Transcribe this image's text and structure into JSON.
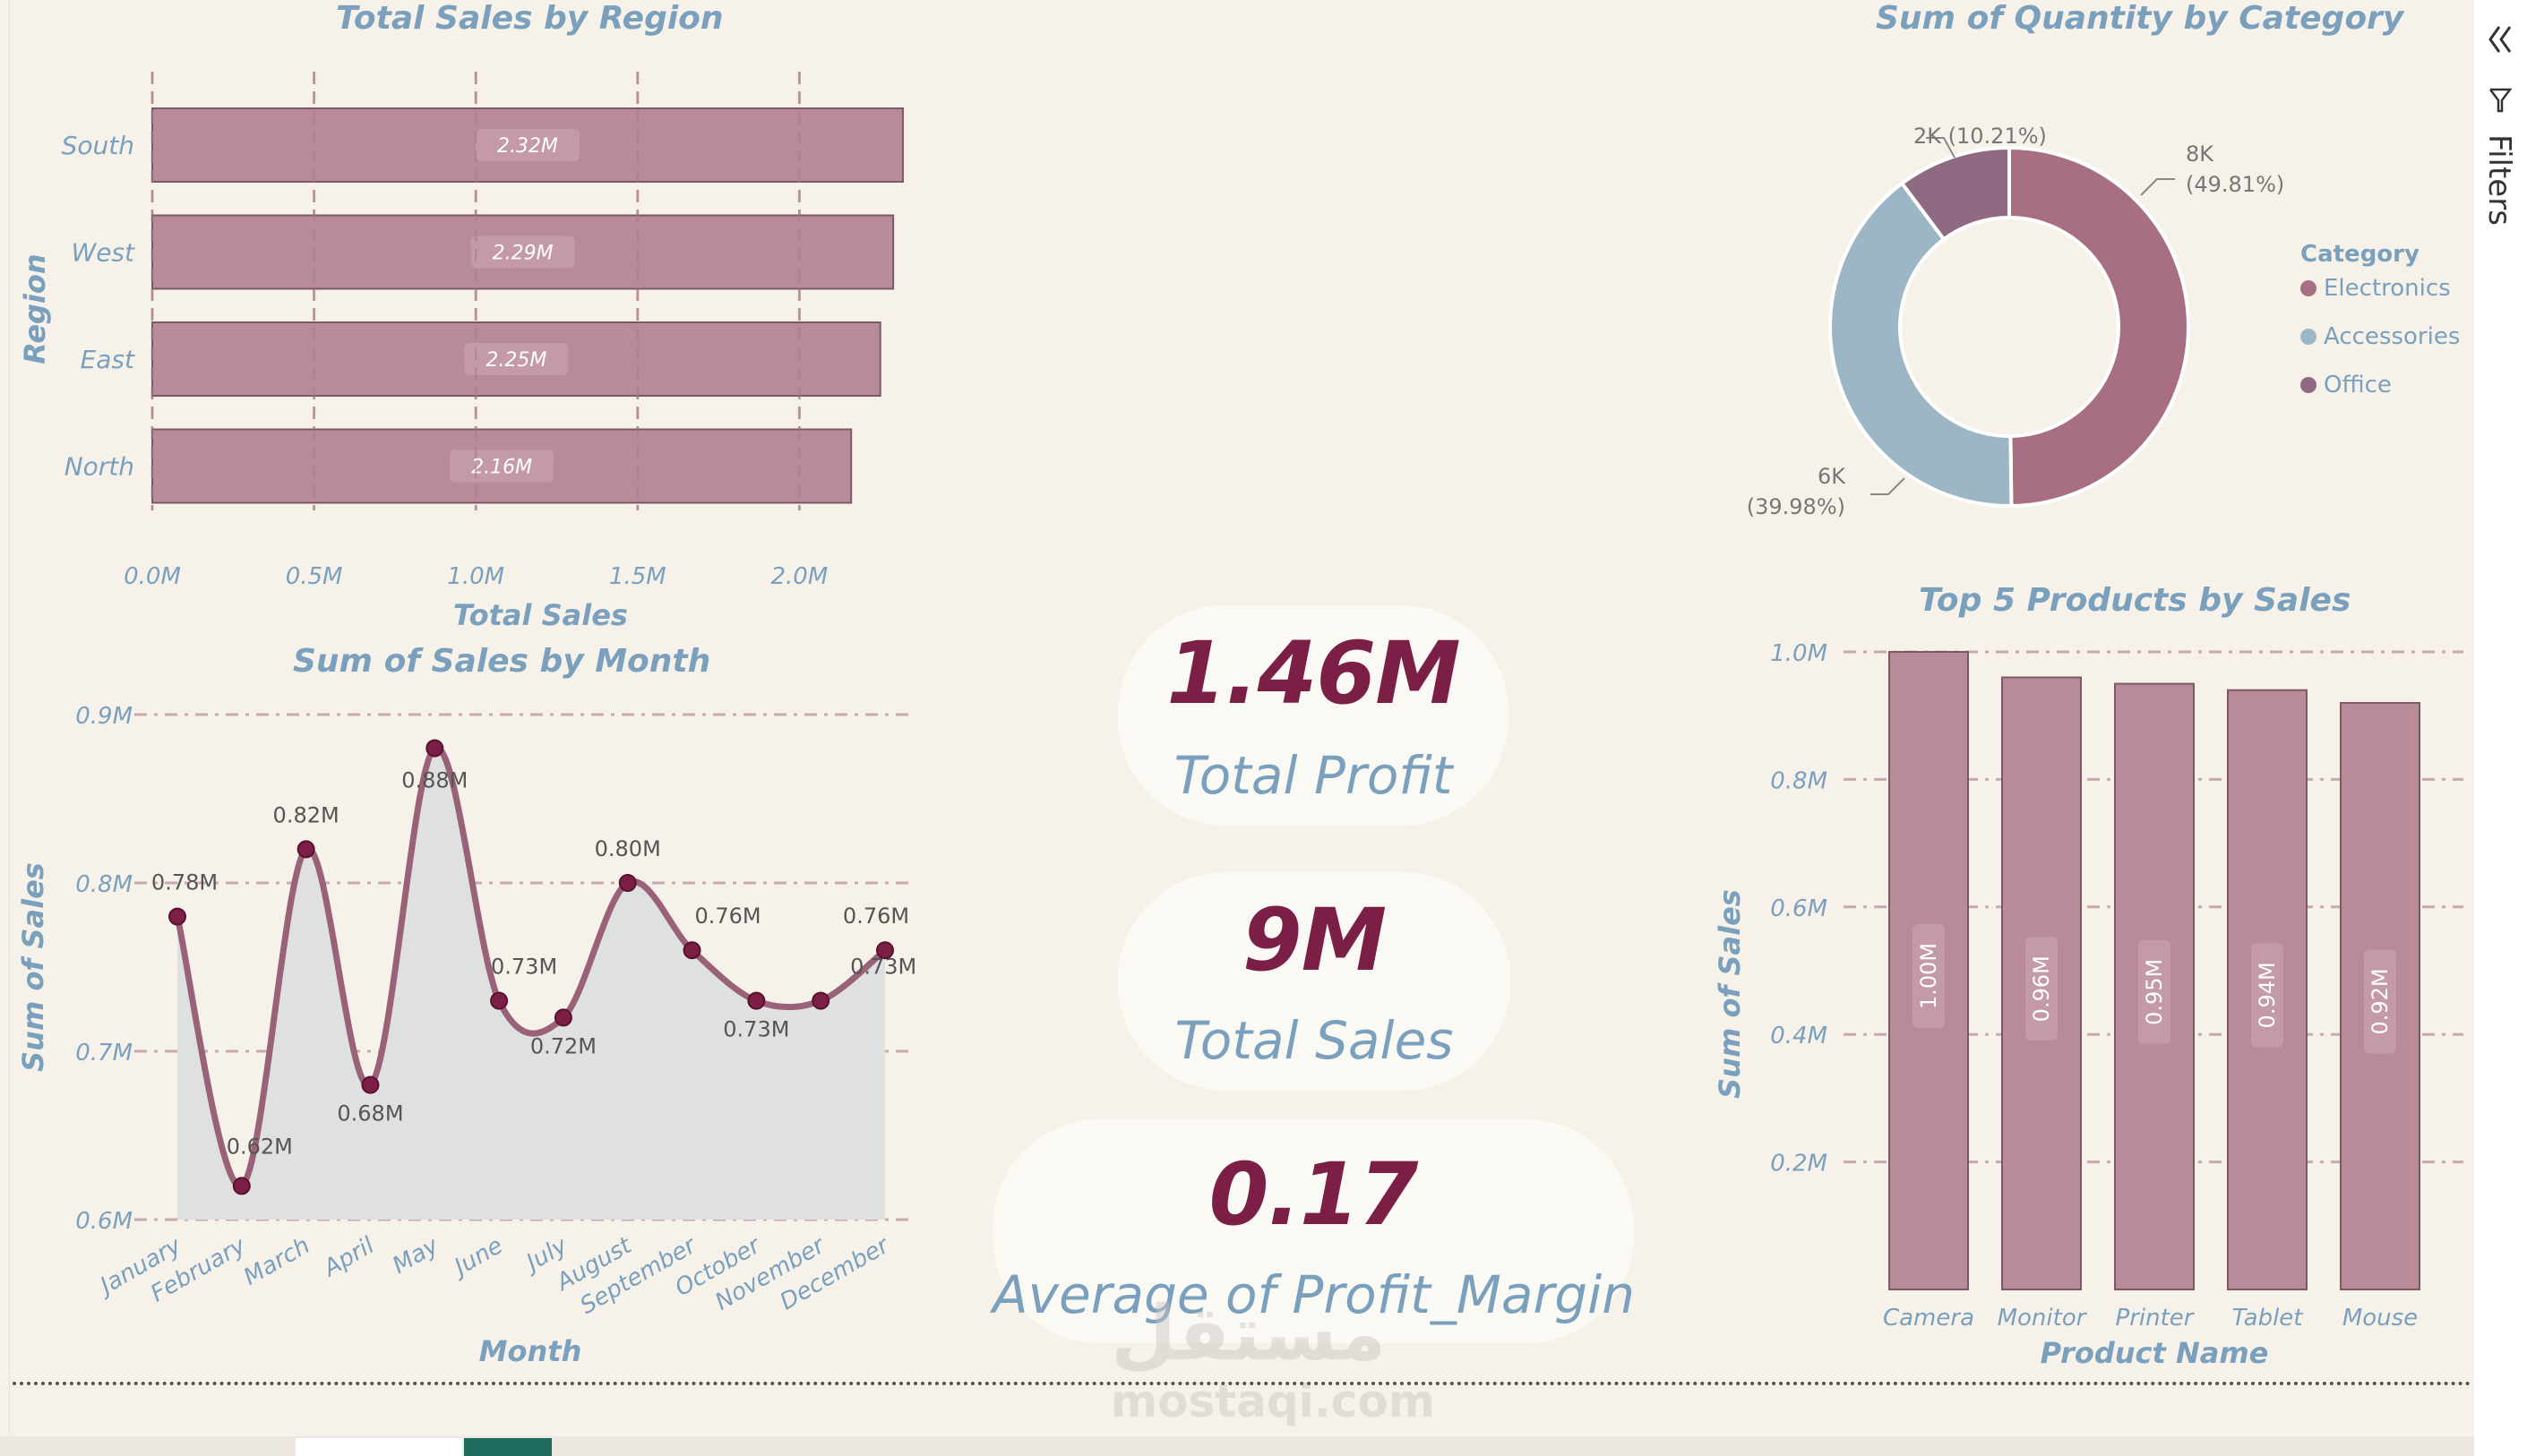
{
  "colors": {
    "bar": "#b98b98",
    "bar_stroke": "#7b5a64",
    "title": "#7aa0bd",
    "kpi_value": "#7c1f47",
    "electronics": "#a86f82",
    "accessories": "#9db6c6",
    "office": "#8f6a83",
    "line": "#9a6278",
    "area": "#dfe1e0",
    "point": "#7c1f47"
  },
  "filters": {
    "label": "Filters",
    "collapse_icon": "double-chevron-left-icon",
    "filter_icon": "funnel-icon"
  },
  "watermark": {
    "logo": "مستقل",
    "url": "mostaqi.com"
  },
  "kpis": [
    {
      "value": "1.46M",
      "label": "Total Profit"
    },
    {
      "value": "9M",
      "label": "Total Sales"
    },
    {
      "value": "0.17",
      "label": "Average of Profit_Margin"
    }
  ],
  "chart_data": [
    {
      "id": "region",
      "type": "bar",
      "orientation": "horizontal",
      "title": "Total Sales by Region",
      "xlabel": "Total Sales",
      "ylabel": "Region",
      "categories": [
        "South",
        "West",
        "East",
        "North"
      ],
      "values": [
        2.32,
        2.29,
        2.25,
        2.16
      ],
      "data_labels": [
        "2.32M",
        "2.29M",
        "2.25M",
        "2.16M"
      ],
      "xticks": [
        "0.0M",
        "0.5M",
        "1.0M",
        "1.5M",
        "2.0M"
      ],
      "xlim": [
        0,
        2.5
      ],
      "grid": "vertical dashed"
    },
    {
      "id": "month",
      "type": "area",
      "title": "Sum of Sales by Month",
      "xlabel": "Month",
      "ylabel": "Sum of Sales",
      "categories": [
        "January",
        "February",
        "March",
        "April",
        "May",
        "June",
        "July",
        "August",
        "September",
        "October",
        "November",
        "December"
      ],
      "values": [
        0.78,
        0.62,
        0.82,
        0.68,
        0.88,
        0.73,
        0.72,
        0.8,
        0.76,
        0.73,
        0.73,
        0.76
      ],
      "data_labels": [
        "0.78M",
        "0.62M",
        "0.82M",
        "0.68M",
        "0.88M",
        "0.73M",
        "0.72M",
        "0.80M",
        "0.76M",
        "0.73M",
        "0.73M",
        "0.76M"
      ],
      "yticks": [
        "0.6M",
        "0.7M",
        "0.8M",
        "0.9M"
      ],
      "ylim": [
        0.6,
        0.9
      ],
      "grid": "horizontal dashed"
    },
    {
      "id": "category",
      "type": "pie",
      "style": "donut",
      "title": "Sum of Quantity by Category",
      "legend_title": "Category",
      "legend_position": "right",
      "categories": [
        "Electronics",
        "Accessories",
        "Office"
      ],
      "values": [
        49.81,
        39.98,
        10.21
      ],
      "slice_labels": [
        {
          "line1": "8K",
          "line2": "(49.81%)"
        },
        {
          "line1": "6K",
          "line2": "(39.98%)"
        },
        {
          "line1": "2K (10.21%)",
          "line2": ""
        }
      ]
    },
    {
      "id": "products",
      "type": "bar",
      "orientation": "vertical",
      "title": "Top 5 Products by Sales",
      "xlabel": "Product Name",
      "ylabel": "Sum of Sales",
      "categories": [
        "Camera",
        "Monitor",
        "Printer",
        "Tablet",
        "Mouse"
      ],
      "values": [
        1.0,
        0.96,
        0.95,
        0.94,
        0.92
      ],
      "data_labels": [
        "1.00M",
        "0.96M",
        "0.95M",
        "0.94M",
        "0.92M"
      ],
      "yticks": [
        "0.2M",
        "0.4M",
        "0.6M",
        "0.8M",
        "1.0M"
      ],
      "ylim": [
        0,
        1.0
      ],
      "grid": "horizontal dashed"
    }
  ]
}
